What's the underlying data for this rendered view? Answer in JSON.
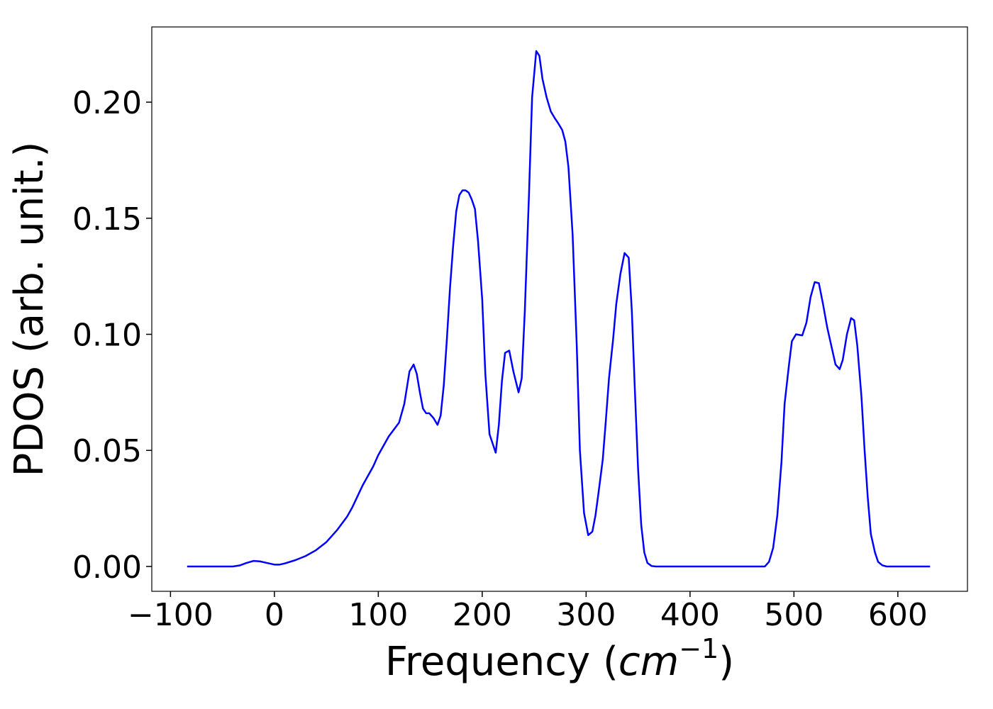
{
  "chart_data": {
    "type": "line",
    "xlabel": [
      "Frequency (",
      "cm",
      "−1",
      ")"
    ],
    "ylabel": "PDOS (arb. unit.)",
    "color": "#0000ff",
    "xlim": [
      -118,
      667
    ],
    "ylim": [
      -0.0107,
      0.2324
    ],
    "xticks": [
      {
        "value": -100,
        "label": "−100"
      },
      0,
      100,
      200,
      300,
      400,
      500,
      600
    ],
    "yticks": [
      {
        "value": 0,
        "label": "0.00"
      },
      {
        "value": 0.05,
        "label": "0.05"
      },
      {
        "value": 0.1,
        "label": "0.10"
      },
      {
        "value": 0.15,
        "label": "0.15"
      },
      {
        "value": 0.2,
        "label": "0.20"
      }
    ],
    "x": [
      -84,
      -40,
      -33,
      -27,
      -20,
      -14,
      -7,
      0,
      5,
      10,
      20,
      30,
      40,
      50,
      60,
      70,
      75,
      85,
      95,
      100,
      110,
      120,
      125,
      130,
      134,
      137,
      140,
      143,
      146,
      149,
      153,
      157,
      160,
      163,
      166,
      169,
      172,
      175,
      178,
      181,
      184,
      187,
      190,
      193,
      196,
      200,
      203,
      207,
      213,
      216,
      219,
      222,
      226,
      230,
      235,
      238,
      241,
      245,
      248,
      252,
      255,
      258,
      262,
      266,
      270,
      273,
      277,
      280,
      283,
      287,
      291,
      294,
      298,
      302,
      306,
      309,
      312,
      316,
      319,
      322,
      326,
      329,
      333,
      337,
      341,
      344,
      347,
      350,
      353,
      356,
      359,
      363,
      367,
      472,
      476,
      480,
      484,
      488,
      491,
      495,
      498,
      502,
      508,
      512,
      516,
      520,
      524,
      528,
      532,
      536,
      540,
      544,
      547,
      551,
      555,
      558,
      561,
      565,
      568,
      571,
      574,
      578,
      581,
      585,
      589,
      631
    ],
    "values": [
      0,
      0,
      0.0005,
      0.0015,
      0.0024,
      0.0022,
      0.0015,
      0.0008,
      0.0008,
      0.0013,
      0.0027,
      0.0045,
      0.007,
      0.0105,
      0.0155,
      0.0215,
      0.0255,
      0.035,
      0.043,
      0.048,
      0.056,
      0.062,
      0.07,
      0.084,
      0.087,
      0.083,
      0.075,
      0.068,
      0.066,
      0.066,
      0.064,
      0.061,
      0.065,
      0.078,
      0.098,
      0.12,
      0.138,
      0.153,
      0.16,
      0.162,
      0.162,
      0.161,
      0.158,
      0.154,
      0.14,
      0.115,
      0.083,
      0.057,
      0.049,
      0.061,
      0.08,
      0.092,
      0.093,
      0.084,
      0.075,
      0.081,
      0.11,
      0.16,
      0.202,
      0.222,
      0.22,
      0.21,
      0.202,
      0.196,
      0.193,
      0.191,
      0.188,
      0.183,
      0.172,
      0.143,
      0.095,
      0.05,
      0.023,
      0.0135,
      0.015,
      0.022,
      0.032,
      0.046,
      0.063,
      0.081,
      0.098,
      0.113,
      0.126,
      0.135,
      0.133,
      0.11,
      0.075,
      0.042,
      0.018,
      0.006,
      0.0015,
      0.0002,
      0,
      0,
      0.002,
      0.008,
      0.022,
      0.045,
      0.07,
      0.086,
      0.097,
      0.1,
      0.0995,
      0.105,
      0.116,
      0.1225,
      0.122,
      0.113,
      0.103,
      0.095,
      0.087,
      0.085,
      0.089,
      0.1,
      0.107,
      0.106,
      0.095,
      0.073,
      0.05,
      0.03,
      0.014,
      0.006,
      0.002,
      0.0005,
      0,
      0
    ]
  }
}
